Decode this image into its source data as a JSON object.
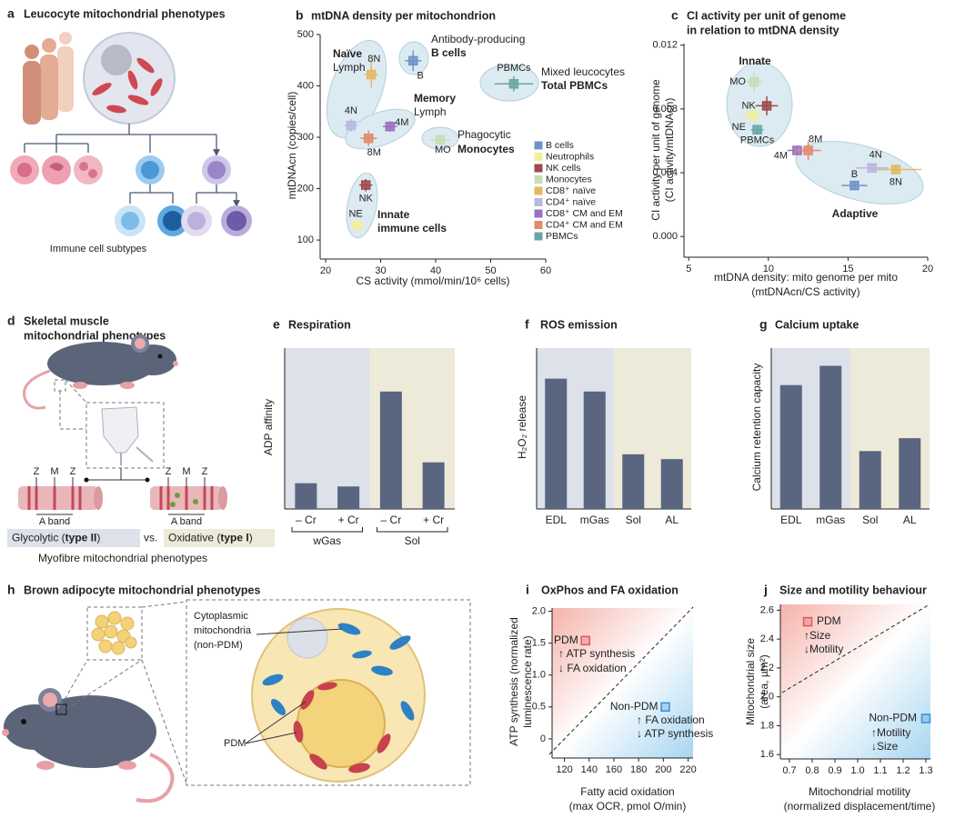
{
  "illustrations": {
    "a": {
      "letter": "a",
      "title": "Leucocyte mitochondrial phenotypes",
      "caption": "Immune cell subtypes"
    },
    "d": {
      "letter": "d",
      "title": [
        "Skeletal muscle",
        "mitochondrial phenotypes"
      ],
      "fibres": [
        {
          "labels": [
            "Z",
            "M",
            "Z"
          ],
          "band": "A band"
        },
        {
          "labels": [
            "Z",
            "M",
            "Z"
          ],
          "band": "A band"
        }
      ],
      "glycolytic": [
        "Glycolytic (",
        "type II",
        ")"
      ],
      "vs": "vs.",
      "oxidative": [
        "Oxidative (",
        "type I",
        ")"
      ],
      "caption": "Myofibre mitochondrial phenotypes"
    },
    "h": {
      "letter": "h",
      "title": "Brown adipocyte mitochondrial phenotypes",
      "non_pdm_label": [
        "Cytoplasmic",
        "mitochondria",
        "(non-PDM)"
      ],
      "pdm_label": "PDM"
    }
  },
  "chart_data": [
    {
      "type": "scatter",
      "panel": "b",
      "title": "mtDNA density per mitochondrion",
      "xlabel": "CS activity (mmol/min/10⁶ cells)",
      "ylabel": "mtDNAcn (copies/cell)",
      "xlim": [
        19,
        60
      ],
      "ylim": [
        63,
        500
      ],
      "xticks": [
        20,
        30,
        40,
        50,
        60
      ],
      "yticks": [
        100,
        200,
        300,
        400,
        500
      ],
      "legend": true,
      "series": [
        {
          "name": "B cells",
          "color": "#6f93c9",
          "label": "B",
          "x": [
            35.9
          ],
          "values": [
            449
          ],
          "xerr": [
            1.5
          ],
          "yerr": [
            20
          ]
        },
        {
          "name": "Neutrophils",
          "color": "#f2ef9c",
          "label": "NE",
          "x": [
            25.8
          ],
          "values": [
            129
          ],
          "xerr": [
            1.0
          ],
          "yerr": [
            10
          ]
        },
        {
          "name": "NK cells",
          "color": "#a04a4c",
          "label": "NK",
          "x": [
            27.3
          ],
          "values": [
            207
          ],
          "xerr": [
            1.2
          ],
          "yerr": [
            12
          ]
        },
        {
          "name": "Monocytes",
          "color": "#c9ddb4",
          "label": "MO",
          "x": [
            40.8
          ],
          "values": [
            295
          ],
          "xerr": [
            1.8
          ],
          "yerr": [
            10
          ]
        },
        {
          "name": "CD8⁺ naïve",
          "color": "#e3b964",
          "label": "8N",
          "x": [
            28.3
          ],
          "values": [
            422
          ],
          "xerr": [
            1.2
          ],
          "yerr": [
            25
          ]
        },
        {
          "name": "CD4⁺ naïve",
          "color": "#b9b6e3",
          "label": "4N",
          "x": [
            24.6
          ],
          "values": [
            323
          ],
          "xerr": [
            1.2
          ],
          "yerr": [
            12
          ]
        },
        {
          "name": "CD8⁺ CM and EM",
          "color": "#9c6fc2",
          "label": "4M",
          "x": [
            31.7
          ],
          "values": [
            321
          ],
          "xerr": [
            1.3
          ],
          "yerr": [
            10
          ]
        },
        {
          "name": "CD4⁺ CM and EM",
          "color": "#e38a6c",
          "label": "8M",
          "x": [
            27.8
          ],
          "values": [
            298
          ],
          "xerr": [
            1.5
          ],
          "yerr": [
            15
          ]
        },
        {
          "name": "PBMCs",
          "color": "#6aa6a6",
          "label": "PBMCs",
          "x": [
            54.2
          ],
          "values": [
            404
          ],
          "xerr": [
            3.5
          ],
          "yerr": [
            15
          ]
        }
      ],
      "annotations": [
        {
          "text": "Naïve",
          "bold": true
        },
        {
          "text": "Lymph",
          "bold": false
        },
        {
          "text": "Antibody-producing",
          "bold": false
        },
        {
          "text": "B cells",
          "bold": true
        },
        {
          "text": "Mixed leucocytes",
          "bold": false
        },
        {
          "text": "Total PBMCs",
          "bold": true
        },
        {
          "text": "Memory",
          "bold": true
        },
        {
          "text": "Lymph",
          "bold": false
        },
        {
          "text": "Phagocytic",
          "bold": false
        },
        {
          "text": "Monocytes",
          "bold": true
        },
        {
          "text": "Innate",
          "bold": true
        },
        {
          "text": "immune cells",
          "bold": true
        }
      ]
    },
    {
      "type": "scatter",
      "panel": "c",
      "title": [
        "CI activity per unit of genome",
        "in relation to mtDNA density"
      ],
      "xlabel": [
        "mtDNA density: mito genome per mito",
        "(mtDNAcn/CS activity)"
      ],
      "ylabel": [
        "CI activity per unit of genome",
        "(CI activity/mtDNAcn)"
      ],
      "xlim": [
        4.7,
        20
      ],
      "ylim": [
        -0.0013,
        0.0121
      ],
      "xticks": [
        5,
        10,
        15,
        20
      ],
      "yticks": [
        {
          "value": 0,
          "label": "0.000"
        },
        0.004,
        0.008,
        0.012
      ],
      "series": [
        {
          "color": "#6f93c9",
          "label": "B",
          "x": [
            15.4
          ],
          "values": [
            0.0032
          ],
          "xerr": [
            0.8
          ],
          "yerr": [
            0.0002
          ]
        },
        {
          "color": "#f2ef9c",
          "label": "NE",
          "x": [
            9.0
          ],
          "values": [
            0.0076
          ],
          "xerr": [
            0.7
          ],
          "yerr": [
            0.0004
          ]
        },
        {
          "color": "#a04a4c",
          "label": "NK",
          "x": [
            9.9
          ],
          "values": [
            0.0082
          ],
          "xerr": [
            0.7
          ],
          "yerr": [
            0.0006
          ]
        },
        {
          "color": "#c9ddb4",
          "label": "MO",
          "x": [
            9.1
          ],
          "values": [
            0.0097
          ],
          "xerr": [
            0.5
          ],
          "yerr": [
            0.0006
          ]
        },
        {
          "color": "#e3b964",
          "label": "8N",
          "x": [
            18.0
          ],
          "values": [
            0.0042
          ],
          "xerr": [
            1.6
          ],
          "yerr": [
            0.0002
          ]
        },
        {
          "color": "#b9b6e3",
          "label": "4N",
          "x": [
            16.5
          ],
          "values": [
            0.0043
          ],
          "xerr": [
            1.0
          ],
          "yerr": [
            0.0002
          ]
        },
        {
          "color": "#9c6fc2",
          "label": "4M",
          "x": [
            11.8
          ],
          "values": [
            0.0054
          ],
          "xerr": [
            0.6
          ],
          "yerr": [
            0.0003
          ]
        },
        {
          "color": "#e38a6c",
          "label": "8M",
          "x": [
            12.5
          ],
          "values": [
            0.0054
          ],
          "xerr": [
            0.8
          ],
          "yerr": [
            0.0006
          ]
        },
        {
          "color": "#6aa6a6",
          "label": "PBMCs",
          "x": [
            9.3
          ],
          "values": [
            0.0067
          ],
          "xerr": [
            0.4
          ],
          "yerr": [
            0.0003
          ]
        }
      ],
      "annotations": [
        {
          "text": "Innate",
          "bold": true
        },
        {
          "text": "Adaptive",
          "bold": true
        }
      ]
    },
    {
      "type": "bar",
      "panel": "e",
      "title": "Respiration",
      "ylabel": "ADP affinity",
      "color": "#5a6580",
      "categories": [
        "– Cr",
        "+ Cr",
        "– Cr",
        "+ Cr"
      ],
      "groups": [
        "wGas",
        "Sol"
      ],
      "shading": [
        "#dce1ea",
        "#eeead9"
      ],
      "values": [
        1.6,
        1.4,
        7.3,
        2.9
      ],
      "ylim": [
        0,
        10
      ]
    },
    {
      "type": "bar",
      "panel": "f",
      "title": "ROS emission",
      "ylabel": "H₂O₂ release",
      "color": "#5a6580",
      "categories": [
        "EDL",
        "mGas",
        "Sol",
        "AL"
      ],
      "shading": [
        "#dce1ea",
        "#eeead9"
      ],
      "values": [
        8.1,
        7.3,
        3.4,
        3.1
      ],
      "ylim": [
        0,
        10
      ]
    },
    {
      "type": "bar",
      "panel": "g",
      "title": "Calcium uptake",
      "ylabel": "Calcium retention capacity",
      "color": "#5a6580",
      "categories": [
        "EDL",
        "mGas",
        "Sol",
        "AL"
      ],
      "shading": [
        "#dce1ea",
        "#eeead9"
      ],
      "values": [
        7.7,
        8.9,
        3.6,
        4.4
      ],
      "ylim": [
        0,
        10
      ]
    },
    {
      "type": "scatter",
      "panel": "i",
      "title": "OxPhos and FA oxidation",
      "xlabel": [
        "Fatty acid oxidation",
        "(max OCR, pmol O/min)"
      ],
      "ylabel": [
        "ATP synthesis (normalized",
        "luminescence rate)"
      ],
      "xlim": [
        110,
        224
      ],
      "ylim": [
        -0.3,
        2.05
      ],
      "xticks": [
        120,
        140,
        160,
        180,
        200,
        220
      ],
      "yticks": [
        0,
        0.5,
        {
          "value": 1,
          "label": "1.0"
        },
        1.5,
        {
          "value": 2,
          "label": "2.0"
        }
      ],
      "series": [
        {
          "name": "PDM",
          "color": "#e0565a",
          "x": [
            137
          ],
          "values": [
            1.54
          ]
        },
        {
          "name": "Non-PDM",
          "color": "#3a8fd6",
          "x": [
            201.6
          ],
          "values": [
            0.5
          ]
        }
      ],
      "annotations": [
        {
          "text": "↑ ATP synthesis",
          "bold": false
        },
        {
          "text": "↓ FA oxidation",
          "bold": false
        },
        {
          "text": "↑ FA oxidation",
          "bold": false
        },
        {
          "text": "↓ ATP synthesis",
          "bold": false
        }
      ]
    },
    {
      "type": "scatter",
      "panel": "j",
      "title": "Size and motility behaviour",
      "xlabel": [
        "Mitochondrial motility",
        "(normalized displacement/time)"
      ],
      "ylabel": [
        "Mitochondrial size",
        "(area, µm²)"
      ],
      "xlim": [
        0.66,
        1.32
      ],
      "ylim": [
        1.57,
        2.64
      ],
      "xticks": [
        0.7,
        0.8,
        0.9,
        {
          "value": 1,
          "label": "1.0"
        },
        1.1,
        1.2,
        1.3
      ],
      "yticks": [
        1.6,
        1.8,
        {
          "value": 2,
          "label": "2.0"
        },
        2.2,
        2.4,
        2.6
      ],
      "series": [
        {
          "name": "PDM",
          "color": "#e0565a",
          "x": [
            0.78
          ],
          "values": [
            2.52
          ]
        },
        {
          "name": "Non-PDM",
          "color": "#3a8fd6",
          "x": [
            1.3
          ],
          "values": [
            1.85
          ]
        }
      ],
      "annotations": [
        {
          "text": "↑Size",
          "bold": false
        },
        {
          "text": "↓Motility",
          "bold": false
        },
        {
          "text": "↑Motility",
          "bold": false
        },
        {
          "text": "↓Size",
          "bold": false
        }
      ]
    }
  ]
}
